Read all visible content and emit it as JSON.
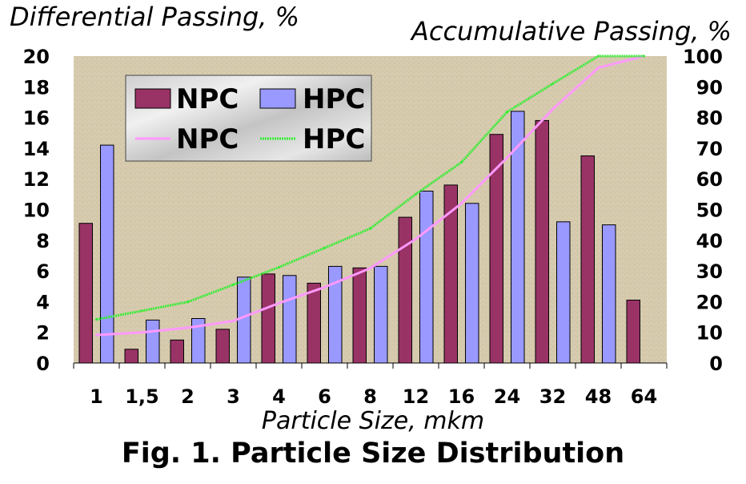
{
  "figure": {
    "title": "Fig. 1. Particle Size Distribution"
  },
  "chart_data": {
    "type": "bar",
    "xlabel": "Particle Size, mkm",
    "ylabel": "Differential Passing, %",
    "ylabel_right": "Accumulative Passing, %",
    "categories": [
      "1",
      "1,5",
      "2",
      "3",
      "4",
      "6",
      "8",
      "12",
      "16",
      "24",
      "32",
      "48",
      "64"
    ],
    "ylim": [
      0,
      20
    ],
    "y_ticks": [
      0,
      2,
      4,
      6,
      8,
      10,
      12,
      14,
      16,
      18,
      20
    ],
    "ylim_right": [
      0,
      100
    ],
    "y_ticks_right": [
      0,
      10,
      20,
      30,
      40,
      50,
      60,
      70,
      80,
      90,
      100
    ],
    "series": [
      {
        "name": "NPC",
        "type": "bar",
        "axis": "left",
        "color": "#993366",
        "values": [
          9.1,
          0.9,
          1.5,
          2.2,
          5.8,
          5.2,
          6.2,
          9.5,
          11.6,
          14.9,
          15.8,
          13.5,
          4.1
        ]
      },
      {
        "name": "HPC",
        "type": "bar",
        "axis": "left",
        "color": "#9999ff",
        "values": [
          14.2,
          2.8,
          2.9,
          5.6,
          5.7,
          6.3,
          6.3,
          11.2,
          10.4,
          16.4,
          9.2,
          9.0,
          0
        ]
      },
      {
        "name": "NPC",
        "type": "line",
        "axis": "right",
        "color": "#ff99ff",
        "values": [
          9.1,
          10,
          11.5,
          13.7,
          19.5,
          24.7,
          30.9,
          40.4,
          52,
          66.9,
          82.7,
          96.2,
          100
        ]
      },
      {
        "name": "HPC",
        "type": "line",
        "axis": "right",
        "color": "#33ee33",
        "values": [
          14.2,
          17,
          19.9,
          25.5,
          31.2,
          37.5,
          43.8,
          55,
          65.4,
          81.8,
          91,
          100,
          100
        ]
      }
    ],
    "legend": {
      "placement": "top-left"
    },
    "grid": false,
    "plot_background": "#d6c9ad"
  }
}
